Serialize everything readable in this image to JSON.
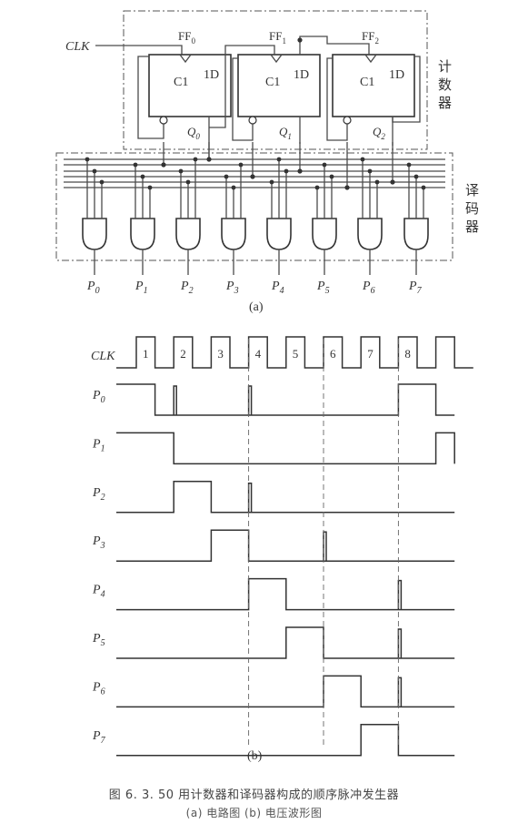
{
  "circuit": {
    "clk_label": "CLK",
    "flipflops": [
      {
        "name": "FF",
        "sub": "0",
        "clock_label": "C1",
        "d_label": "1D",
        "q_name": "Q",
        "q_sub": "0"
      },
      {
        "name": "FF",
        "sub": "1",
        "clock_label": "C1",
        "d_label": "1D",
        "q_name": "Q",
        "q_sub": "1"
      },
      {
        "name": "FF",
        "sub": "2",
        "clock_label": "C1",
        "d_label": "1D",
        "q_name": "Q",
        "q_sub": "2"
      }
    ],
    "counter_label": [
      "计",
      "数",
      "器"
    ],
    "decoder_label": [
      "译",
      "码",
      "器"
    ],
    "outputs": [
      {
        "name": "P",
        "sub": "0"
      },
      {
        "name": "P",
        "sub": "1"
      },
      {
        "name": "P",
        "sub": "2"
      },
      {
        "name": "P",
        "sub": "3"
      },
      {
        "name": "P",
        "sub": "4"
      },
      {
        "name": "P",
        "sub": "5"
      },
      {
        "name": "P",
        "sub": "6"
      },
      {
        "name": "P",
        "sub": "7"
      }
    ],
    "part_label": "(a)"
  },
  "waveform": {
    "clk_label": "CLK",
    "clock_numbers": [
      "1",
      "2",
      "3",
      "4",
      "5",
      "6",
      "7",
      "8"
    ],
    "signals": [
      {
        "name": "P",
        "sub": "0",
        "high": [
          [
            0,
            0.5
          ],
          [
            7,
            8
          ]
        ],
        "glitches": [
          1,
          3
        ]
      },
      {
        "name": "P",
        "sub": "1",
        "high": [
          [
            0,
            1
          ],
          [
            8,
            8.5
          ]
        ],
        "glitches": []
      },
      {
        "name": "P",
        "sub": "2",
        "high": [
          [
            1,
            2
          ]
        ],
        "glitches": [
          3
        ]
      },
      {
        "name": "P",
        "sub": "3",
        "high": [
          [
            2,
            3
          ]
        ],
        "glitches": [
          5
        ]
      },
      {
        "name": "P",
        "sub": "4",
        "high": [
          [
            3,
            4
          ]
        ],
        "glitches": [
          7
        ]
      },
      {
        "name": "P",
        "sub": "5",
        "high": [
          [
            4,
            5
          ]
        ],
        "glitches": [
          7
        ]
      },
      {
        "name": "P",
        "sub": "6",
        "high": [
          [
            5,
            6
          ]
        ],
        "glitches": [
          7
        ]
      },
      {
        "name": "P",
        "sub": "7",
        "high": [
          [
            6,
            7
          ]
        ],
        "glitches": []
      }
    ],
    "part_label": "(b)"
  },
  "caption": {
    "main": "图 6. 3. 50    用计数器和译码器构成的顺序脉冲发生器",
    "sub": "(a) 电路图    (b) 电压波形图"
  }
}
